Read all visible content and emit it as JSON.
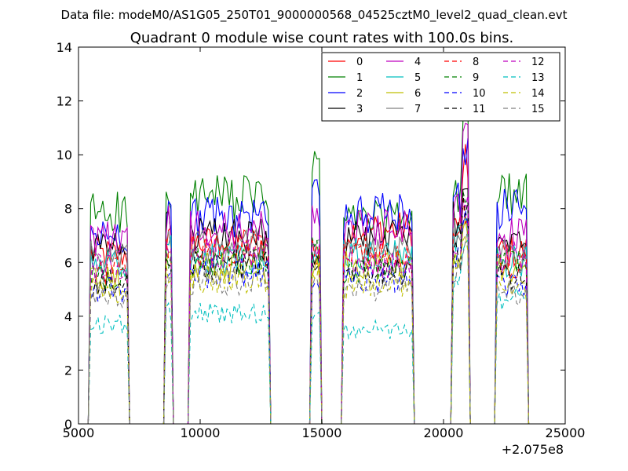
{
  "chart_data": {
    "type": "line",
    "suptitle": "Data file: modeM0/AS1G05_250T01_9000000568_04525cztM0_level2_quad_clean.evt",
    "title": "Quadrant 0 module wise count rates with 100.0s bins.",
    "xlabel": "",
    "ylabel": "",
    "x_offset_label": "+2.075e8",
    "xlim": [
      5000,
      25000
    ],
    "ylim": [
      0,
      14
    ],
    "xticks": [
      5000,
      10000,
      15000,
      20000,
      25000
    ],
    "xtick_labels": [
      "5000",
      "10000",
      "15000",
      "20000",
      "25000"
    ],
    "yticks": [
      0,
      2,
      4,
      6,
      8,
      10,
      12,
      14
    ],
    "ytick_labels": [
      "0",
      "2",
      "4",
      "6",
      "8",
      "10",
      "12",
      "14"
    ],
    "grid": false,
    "legend_position": "top-right",
    "segments": [
      {
        "start": 5400,
        "end": 7100
      },
      {
        "start": 8500,
        "end": 8900
      },
      {
        "start": 9500,
        "end": 12900
      },
      {
        "start": 14500,
        "end": 15000
      },
      {
        "start": 15800,
        "end": 18800
      },
      {
        "start": 20300,
        "end": 21100
      },
      {
        "start": 22100,
        "end": 23500
      }
    ],
    "series": [
      {
        "name": "0",
        "color": "#ff0000",
        "dashed": false,
        "levels": [
          6.3,
          6.8,
          6.7,
          6.0,
          7.2,
          7.4,
          6.4
        ],
        "peak": 10.4
      },
      {
        "name": "1",
        "color": "#008000",
        "dashed": false,
        "levels": [
          7.9,
          8.0,
          8.4,
          9.7,
          7.6,
          8.3,
          8.5
        ],
        "peak": 12.7
      },
      {
        "name": "2",
        "color": "#0000ff",
        "dashed": false,
        "levels": [
          7.0,
          7.9,
          7.7,
          9.2,
          7.8,
          8.5,
          8.0
        ],
        "peak": 11.1
      },
      {
        "name": "3",
        "color": "#000000",
        "dashed": false,
        "levels": [
          6.5,
          7.3,
          7.0,
          6.2,
          6.9,
          7.7,
          6.6
        ],
        "peak": 9.0
      },
      {
        "name": "4",
        "color": "#bf00bf",
        "dashed": false,
        "levels": [
          6.9,
          7.6,
          7.2,
          7.8,
          7.3,
          8.0,
          7.0
        ],
        "peak": 11.2
      },
      {
        "name": "5",
        "color": "#00bfbf",
        "dashed": false,
        "levels": [
          5.9,
          6.5,
          6.1,
          6.3,
          6.3,
          6.8,
          6.0
        ],
        "peak": 8.0
      },
      {
        "name": "6",
        "color": "#bfbf00",
        "dashed": false,
        "levels": [
          5.3,
          5.9,
          5.8,
          5.9,
          5.9,
          6.3,
          5.7
        ],
        "peak": 7.6
      },
      {
        "name": "7",
        "color": "#808080",
        "dashed": false,
        "levels": [
          6.2,
          6.8,
          6.6,
          6.6,
          6.4,
          7.0,
          6.3
        ],
        "peak": 8.4
      },
      {
        "name": "8",
        "color": "#ff0000",
        "dashed": true,
        "levels": [
          5.7,
          6.3,
          6.4,
          6.5,
          6.1,
          6.6,
          5.9
        ],
        "peak": 8.6
      },
      {
        "name": "9",
        "color": "#008000",
        "dashed": true,
        "levels": [
          5.5,
          6.1,
          6.1,
          6.5,
          5.7,
          6.4,
          6.1
        ],
        "peak": 8.8
      },
      {
        "name": "10",
        "color": "#0000ff",
        "dashed": true,
        "levels": [
          5.0,
          5.9,
          5.6,
          5.4,
          5.4,
          6.1,
          5.2
        ],
        "peak": 8.3
      },
      {
        "name": "11",
        "color": "#000000",
        "dashed": true,
        "levels": [
          5.2,
          5.8,
          5.9,
          6.0,
          5.6,
          6.2,
          5.5
        ],
        "peak": 8.7
      },
      {
        "name": "12",
        "color": "#bf00bf",
        "dashed": true,
        "levels": [
          5.8,
          6.4,
          6.3,
          6.3,
          6.0,
          6.7,
          6.2
        ],
        "peak": 9.0
      },
      {
        "name": "13",
        "color": "#00bfbf",
        "dashed": true,
        "levels": [
          3.7,
          4.2,
          4.1,
          4.0,
          3.5,
          5.2,
          4.6
        ],
        "peak": 7.0
      },
      {
        "name": "14",
        "color": "#bfbf00",
        "dashed": true,
        "levels": [
          5.0,
          5.6,
          5.4,
          5.6,
          5.2,
          5.9,
          5.0
        ],
        "peak": 7.5
      },
      {
        "name": "15",
        "color": "#808080",
        "dashed": true,
        "levels": [
          4.8,
          5.4,
          5.3,
          5.4,
          5.0,
          5.7,
          4.9
        ],
        "peak": 7.4
      }
    ]
  }
}
